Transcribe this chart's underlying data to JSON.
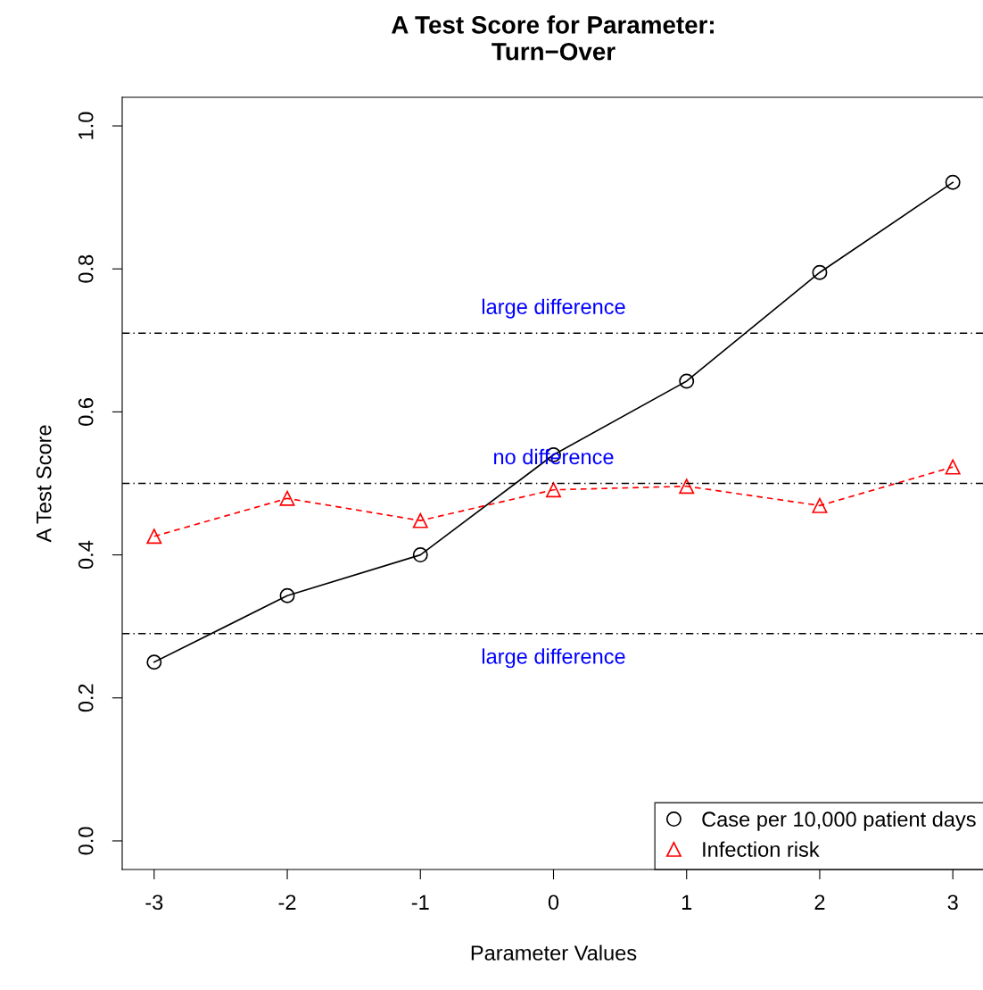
{
  "chart_data": {
    "type": "line",
    "title": "A Test Score for Parameter:\nTurn−Over",
    "xlabel": "Parameter Values",
    "ylabel": "A Test Score",
    "x": [
      -3,
      -2,
      -1,
      0,
      1,
      2,
      3
    ],
    "series": [
      {
        "name": "Case per 10,000 patient days",
        "color": "#000000",
        "values": [
          0.25,
          0.343,
          0.4,
          0.54,
          0.643,
          0.795,
          0.921
        ],
        "marker": "circle",
        "line_style": "solid"
      },
      {
        "name": "Infection risk",
        "color": "#ff0000",
        "values": [
          0.426,
          0.479,
          0.448,
          0.491,
          0.496,
          0.469,
          0.523
        ],
        "marker": "triangle",
        "line_style": "dashed"
      }
    ],
    "ref_lines": [
      {
        "axis": "y",
        "value": 0.71,
        "label": "large difference",
        "color": "#000000",
        "line_style": "dashdot"
      },
      {
        "axis": "y",
        "value": 0.5,
        "label": "no difference",
        "color": "#000000",
        "line_style": "dashdot"
      },
      {
        "axis": "y",
        "value": 0.29,
        "label": "large difference",
        "color": "#000000",
        "line_style": "dashdot"
      }
    ],
    "xlim": [
      -3.24,
      3.24
    ],
    "ylim": [
      -0.04,
      1.04
    ],
    "xticks": [
      -3,
      -2,
      -1,
      0,
      1,
      2,
      3
    ],
    "yticks": [
      {
        "value": 0,
        "label": "0.0"
      },
      0.2,
      0.4,
      0.6,
      0.8,
      {
        "value": 1,
        "label": "1.0"
      }
    ],
    "grid": false,
    "legend": "bottom right"
  }
}
